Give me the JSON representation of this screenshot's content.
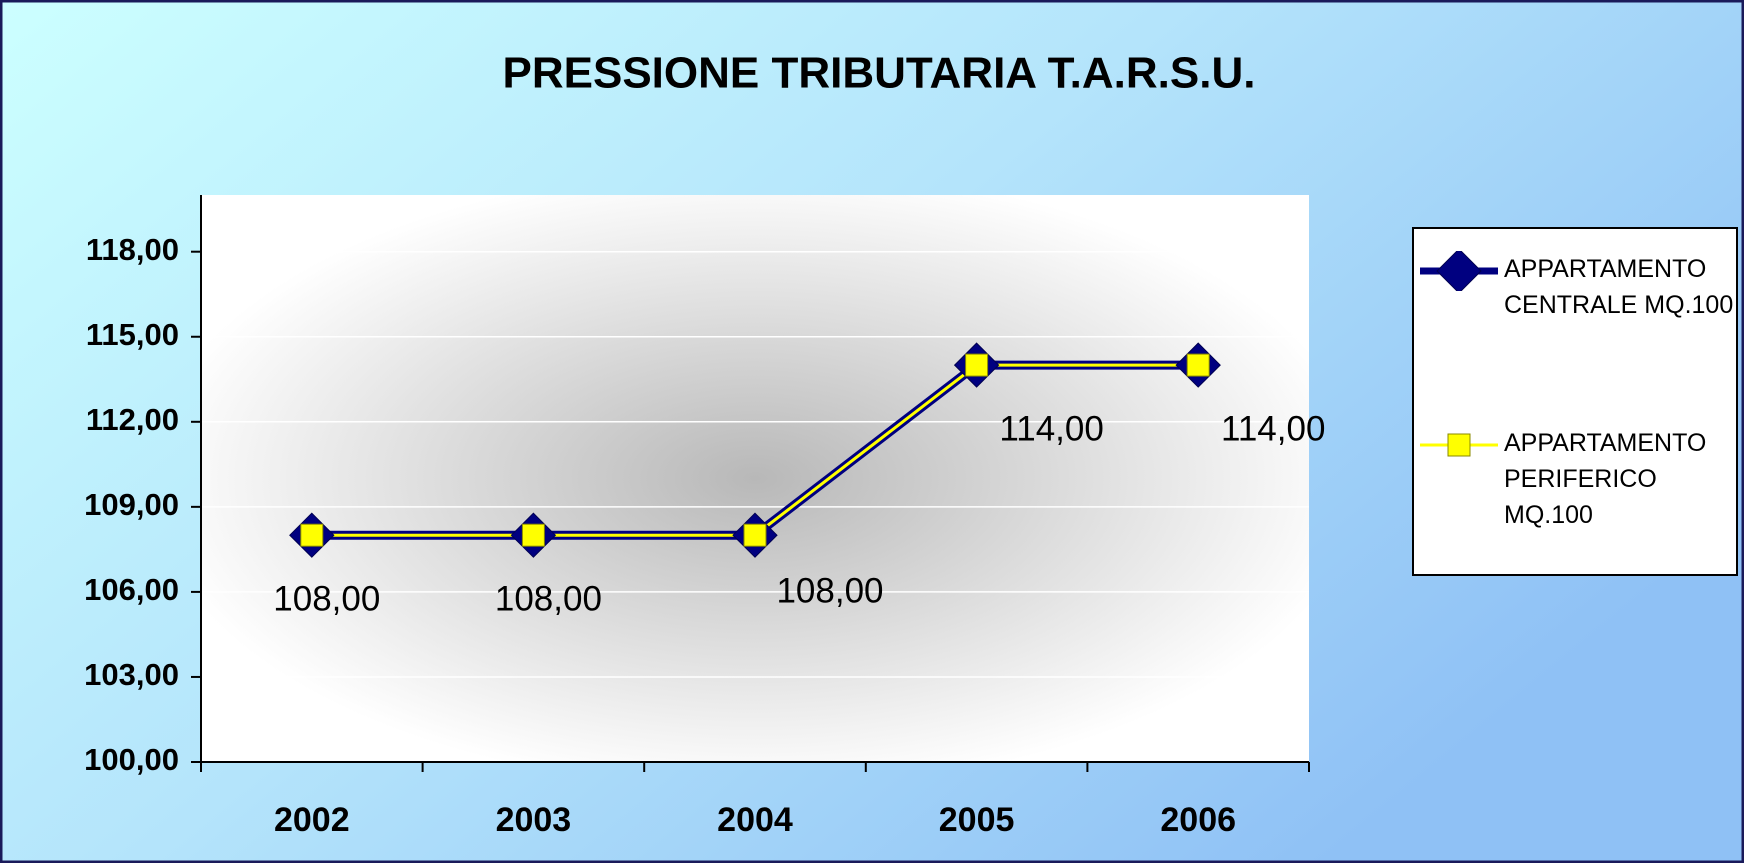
{
  "chart_data": {
    "type": "line",
    "title": "PRESSIONE TRIBUTARIA T.A.R.S.U.",
    "categories": [
      "2002",
      "2003",
      "2004",
      "2005",
      "2006"
    ],
    "series": [
      {
        "name": "APPARTAMENTO CENTRALE MQ.100",
        "color": "#000080",
        "values": [
          108,
          108,
          108,
          114,
          114
        ],
        "value_labels": [
          "108,00",
          "108,00",
          "108,00",
          "114,00",
          "114,00"
        ]
      },
      {
        "name": "APPARTAMENTO PERIFERICO MQ.100",
        "color": "#ffff00",
        "values": [
          108,
          108,
          108,
          114,
          114
        ]
      }
    ],
    "ylim": [
      100,
      120
    ],
    "yticks": [
      {
        "value": 100,
        "label": "100,00"
      },
      {
        "value": 103,
        "label": "103,00"
      },
      {
        "value": 106,
        "label": "106,00"
      },
      {
        "value": 109,
        "label": "109,00"
      },
      {
        "value": 112,
        "label": "112,00"
      },
      {
        "value": 115,
        "label": "115,00"
      },
      {
        "value": 118,
        "label": "118,00"
      }
    ],
    "grid": true,
    "legend": "right"
  }
}
